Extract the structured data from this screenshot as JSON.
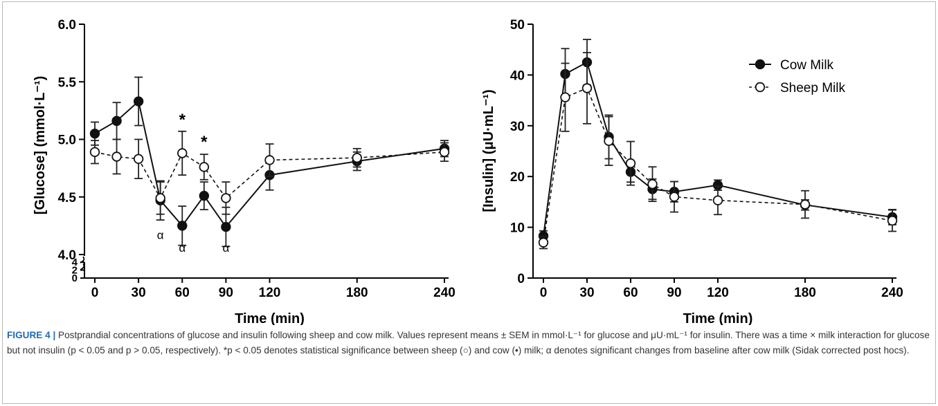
{
  "caption": {
    "label": "FIGURE 4 |",
    "text": " Postprandial concentrations of glucose and insulin following sheep and cow milk. Values represent means ± SEM in mmol·L⁻¹ for glucose and μU·mL⁻¹ for insulin. There was a time × milk interaction for glucose but not insulin (p < 0.05 and p > 0.05, respectively). *p < 0.05 denotes statistical significance between sheep (○) and cow (•) milk; α denotes significant changes from baseline after cow milk (Sidak corrected post hocs)."
  },
  "chart_data": [
    {
      "type": "line",
      "ylabel": "[Glucose] (mmol·L⁻¹)",
      "xlabel": "Time (min)",
      "x_ticks": [
        0,
        30,
        60,
        90,
        120,
        180,
        240
      ],
      "x_tick_labels": [
        "0",
        "30",
        "60",
        "90",
        "120",
        "180",
        "240"
      ],
      "xlim": [
        0,
        240
      ],
      "ylim": [
        4.0,
        6.0
      ],
      "y_ticks": [
        4.0,
        4.5,
        5.0,
        5.5,
        6.0
      ],
      "y_tick_labels": [
        "4.0",
        "4.5",
        "5.0",
        "5.5",
        "6.0"
      ],
      "y_break": {
        "lower_ticks": [
          0,
          2,
          4
        ],
        "lower_tick_labels": [
          "0",
          "2",
          "4"
        ]
      },
      "series": [
        {
          "name": "Cow Milk",
          "marker": "filled",
          "line": "solid",
          "x": [
            0,
            15,
            30,
            45,
            60,
            75,
            90,
            120,
            180,
            240
          ],
          "y": [
            5.05,
            5.16,
            5.33,
            4.47,
            4.25,
            4.51,
            4.24,
            4.69,
            4.81,
            4.92
          ],
          "err": [
            0.1,
            0.16,
            0.21,
            0.17,
            0.17,
            0.12,
            0.17,
            0.13,
            0.08,
            0.07
          ]
        },
        {
          "name": "Sheep Milk",
          "marker": "open",
          "line": "dashed",
          "x": [
            0,
            15,
            30,
            45,
            60,
            75,
            90,
            120,
            180,
            240
          ],
          "y": [
            4.89,
            4.85,
            4.83,
            4.49,
            4.88,
            4.76,
            4.49,
            4.82,
            4.84,
            4.89
          ],
          "err": [
            0.1,
            0.15,
            0.17,
            0.14,
            0.19,
            0.11,
            0.14,
            0.14,
            0.08,
            0.08
          ]
        }
      ],
      "annotations": [
        {
          "text": "*",
          "x": 60,
          "y": 5.17
        },
        {
          "text": "*",
          "x": 75,
          "y": 4.98
        },
        {
          "text": "α",
          "x": 45,
          "y": 4.17
        },
        {
          "text": "α",
          "x": 60,
          "y": 4.06
        },
        {
          "text": "α",
          "x": 90,
          "y": 4.06
        }
      ]
    },
    {
      "type": "line",
      "ylabel": "[Insulin] (μU·mL⁻¹)",
      "xlabel": "Time (min)",
      "x_ticks": [
        0,
        30,
        60,
        90,
        120,
        180,
        240
      ],
      "x_tick_labels": [
        "0",
        "30",
        "60",
        "90",
        "120",
        "180",
        "240"
      ],
      "xlim": [
        0,
        240
      ],
      "ylim": [
        0,
        50
      ],
      "y_ticks": [
        0,
        10,
        20,
        30,
        40,
        50
      ],
      "y_tick_labels": [
        "0",
        "10",
        "20",
        "30",
        "40",
        "50"
      ],
      "legend": {
        "position": "top-right"
      },
      "series": [
        {
          "name": "Cow Milk",
          "marker": "filled",
          "line": "solid",
          "x": [
            0,
            15,
            30,
            45,
            60,
            75,
            90,
            120,
            180,
            240
          ],
          "y": [
            8.3,
            40.2,
            42.5,
            27.8,
            20.9,
            17.5,
            17.0,
            18.3,
            14.4,
            12.0
          ],
          "err": [
            1.0,
            5.0,
            4.5,
            4.3,
            2.0,
            2.0,
            2.0,
            1.0,
            1.0,
            1.5
          ]
        },
        {
          "name": "Sheep Milk",
          "marker": "open",
          "line": "dashed",
          "x": [
            0,
            15,
            30,
            45,
            60,
            75,
            90,
            120,
            180,
            240
          ],
          "y": [
            7.0,
            35.6,
            37.4,
            27.0,
            22.6,
            18.5,
            16.0,
            15.3,
            14.5,
            11.3
          ],
          "err": [
            1.2,
            6.7,
            7.0,
            4.8,
            4.3,
            3.4,
            3.0,
            2.8,
            2.7,
            2.1
          ]
        }
      ]
    }
  ]
}
